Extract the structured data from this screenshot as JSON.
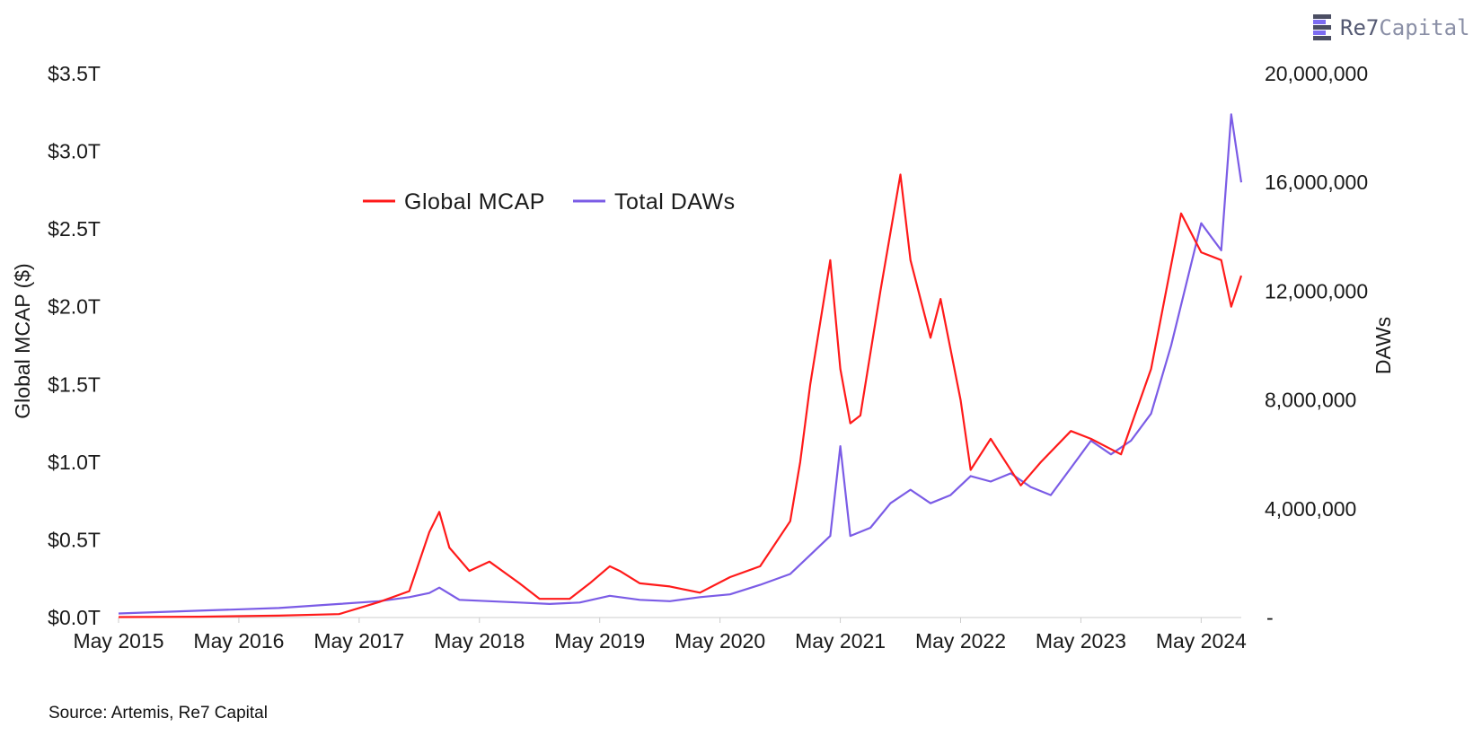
{
  "logo": {
    "text_main": "Re7",
    "text_accent": "Capital"
  },
  "source": "Source: Artemis, Re7 Capital",
  "chart_data": {
    "type": "line",
    "legend": {
      "position": "top-center",
      "items": [
        "Global MCAP",
        "Total DAWs"
      ]
    },
    "ylabel_left": "Global MCAP ($)",
    "ylabel_right": "DAWs",
    "ylim_left": [
      0,
      3.5
    ],
    "ylim_right": [
      0,
      20000000
    ],
    "yticks_left": [
      "$0.0T",
      "$0.5T",
      "$1.0T",
      "$1.5T",
      "$2.0T",
      "$2.5T",
      "$3.0T",
      "$3.5T"
    ],
    "yticks_right": [
      "-",
      "4,000,000",
      "8,000,000",
      "12,000,000",
      "16,000,000",
      "20,000,000"
    ],
    "xticks": [
      "May 2015",
      "May 2016",
      "May 2017",
      "May 2018",
      "May 2019",
      "May 2020",
      "May 2021",
      "May 2022",
      "May 2023",
      "May 2024"
    ],
    "x_range": [
      "2015-05",
      "2024-09"
    ],
    "grid": false,
    "series": [
      {
        "name": "Global MCAP",
        "axis": "left",
        "color": "#ff1a1a",
        "x": [
          "2015-05",
          "2016-01",
          "2016-09",
          "2017-03",
          "2017-07",
          "2017-10",
          "2017-12",
          "2018-01",
          "2018-02",
          "2018-04",
          "2018-06",
          "2018-09",
          "2018-11",
          "2019-02",
          "2019-04",
          "2019-06",
          "2019-07",
          "2019-09",
          "2019-12",
          "2020-03",
          "2020-06",
          "2020-09",
          "2020-12",
          "2021-01",
          "2021-02",
          "2021-04",
          "2021-05",
          "2021-06",
          "2021-07",
          "2021-09",
          "2021-11",
          "2021-12",
          "2022-02",
          "2022-03",
          "2022-05",
          "2022-06",
          "2022-08",
          "2022-11",
          "2023-01",
          "2023-04",
          "2023-06",
          "2023-09",
          "2023-12",
          "2024-03",
          "2024-05",
          "2024-07",
          "2024-08",
          "2024-09"
        ],
        "y": [
          0.003,
          0.005,
          0.012,
          0.022,
          0.1,
          0.17,
          0.55,
          0.68,
          0.45,
          0.3,
          0.36,
          0.22,
          0.12,
          0.12,
          0.22,
          0.33,
          0.3,
          0.22,
          0.2,
          0.16,
          0.26,
          0.33,
          0.62,
          1.0,
          1.5,
          2.3,
          1.6,
          1.25,
          1.3,
          2.1,
          2.85,
          2.3,
          1.8,
          2.05,
          1.4,
          0.95,
          1.15,
          0.85,
          1.0,
          1.2,
          1.15,
          1.05,
          1.6,
          2.6,
          2.35,
          2.3,
          2.0,
          2.2
        ]
      },
      {
        "name": "Total DAWs",
        "axis": "right",
        "color": "#7b5ce6",
        "x": [
          "2015-05",
          "2016-01",
          "2016-09",
          "2017-03",
          "2017-07",
          "2017-10",
          "2017-12",
          "2018-01",
          "2018-03",
          "2018-06",
          "2018-09",
          "2018-12",
          "2019-03",
          "2019-06",
          "2019-09",
          "2019-12",
          "2020-03",
          "2020-06",
          "2020-09",
          "2020-12",
          "2021-02",
          "2021-04",
          "2021-05",
          "2021-06",
          "2021-08",
          "2021-10",
          "2021-12",
          "2022-02",
          "2022-04",
          "2022-06",
          "2022-08",
          "2022-10",
          "2022-12",
          "2023-02",
          "2023-04",
          "2023-06",
          "2023-08",
          "2023-10",
          "2023-12",
          "2024-02",
          "2024-04",
          "2024-05",
          "2024-06",
          "2024-07",
          "2024-08",
          "2024-09"
        ],
        "y": [
          150000,
          250000,
          350000,
          500000,
          600000,
          750000,
          900000,
          1100000,
          650000,
          600000,
          550000,
          500000,
          550000,
          800000,
          650000,
          600000,
          750000,
          850000,
          1200000,
          1600000,
          2300000,
          3000000,
          6300000,
          3000000,
          3300000,
          4200000,
          4700000,
          4200000,
          4500000,
          5200000,
          5000000,
          5300000,
          4800000,
          4500000,
          5500000,
          6500000,
          6000000,
          6500000,
          7500000,
          10000000,
          13000000,
          14500000,
          14000000,
          13500000,
          18500000,
          16000000
        ]
      }
    ]
  }
}
